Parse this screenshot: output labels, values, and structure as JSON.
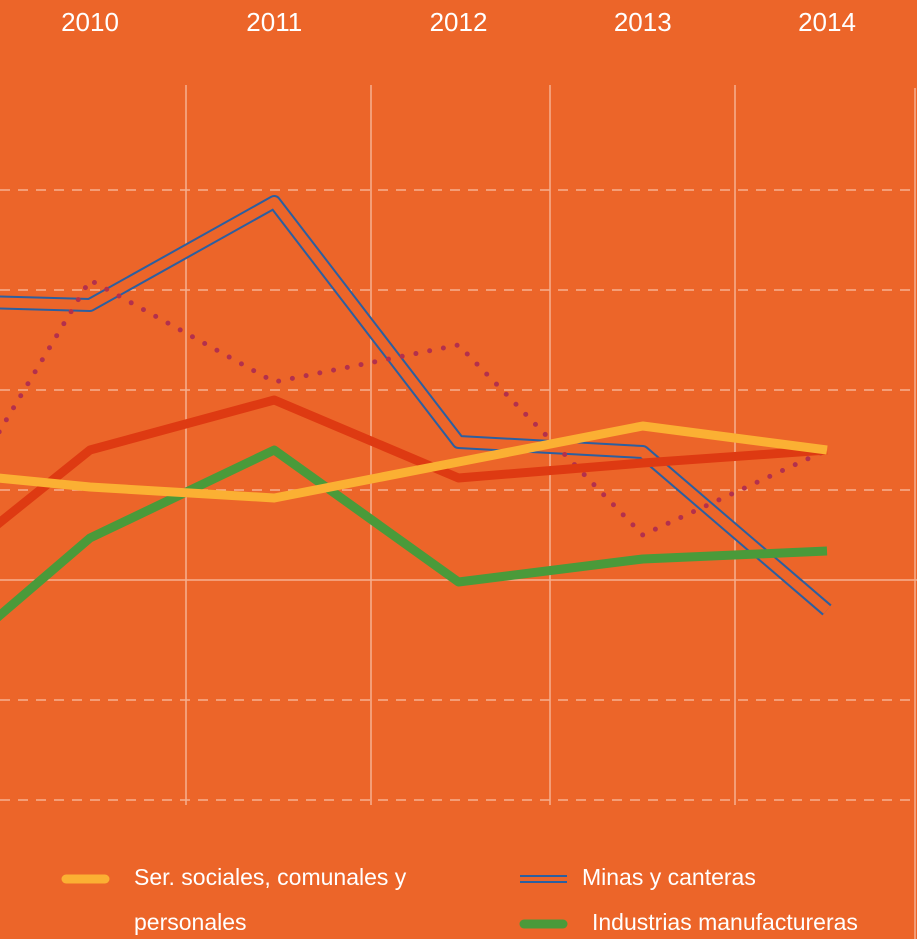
{
  "chart_data": {
    "type": "line",
    "categories": [
      null,
      "2010",
      "2011",
      "2012",
      "2013",
      "2014"
    ],
    "series": [
      {
        "name": "Minas y canteras",
        "color": "#2c5fa0",
        "style": "double",
        "values": [
          28,
          27.5,
          37.8,
          13.8,
          12.8,
          -3
        ]
      },
      {
        "color": "#b3304c",
        "style": "dotted",
        "values": [
          -0.8,
          30,
          19.8,
          23.5,
          4.5,
          13
        ]
      },
      {
        "color": "#de3a12",
        "style": "solid",
        "values": [
          -1.8,
          13,
          18,
          10.2,
          11.7,
          13
        ]
      },
      {
        "name": "Industrias manufactureras",
        "color": "#4a9a3a",
        "style": "solid",
        "values": [
          -11.6,
          4.2,
          13,
          -0.2,
          2.1,
          2.9
        ]
      },
      {
        "name": "Ser. sociales, comunales y personales",
        "color": "#fbb033",
        "style": "solid",
        "values": [
          11.1,
          9.3,
          8.2,
          11.8,
          15.4,
          13
        ]
      }
    ],
    "ylim": [
      -23,
      50
    ],
    "yticks": [
      -22,
      -12,
      0,
      9,
      19,
      29,
      39
    ],
    "grid": true
  }
}
